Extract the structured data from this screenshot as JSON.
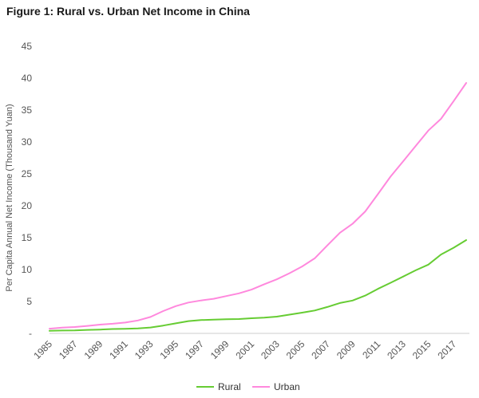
{
  "chart_data": {
    "type": "line",
    "title": "Figure 1: Rural vs. Urban Net Income in China",
    "xlabel": "",
    "ylabel": "Per Capita Annual Net Income (Thousand Yuan)",
    "x": [
      1985,
      1986,
      1987,
      1988,
      1989,
      1990,
      1991,
      1992,
      1993,
      1994,
      1995,
      1996,
      1997,
      1998,
      1999,
      2000,
      2001,
      2002,
      2003,
      2004,
      2005,
      2006,
      2007,
      2008,
      2009,
      2010,
      2011,
      2012,
      2013,
      2014,
      2015,
      2016,
      2017,
      2018
    ],
    "x_tick_labels": [
      "1985",
      "1987",
      "1989",
      "1991",
      "1993",
      "1995",
      "1997",
      "1999",
      "2001",
      "2003",
      "2005",
      "2007",
      "2009",
      "2011",
      "2013",
      "2015",
      "2017"
    ],
    "y_tick_labels": [
      "-",
      "5",
      "10",
      "15",
      "20",
      "25",
      "30",
      "35",
      "40",
      "45"
    ],
    "ylim": [
      0,
      45
    ],
    "grid": false,
    "legend_position": "bottom",
    "series": [
      {
        "name": "Rural",
        "color": "#66cc33",
        "values": [
          0.4,
          0.45,
          0.46,
          0.55,
          0.6,
          0.69,
          0.71,
          0.78,
          0.92,
          1.22,
          1.58,
          1.93,
          2.09,
          2.16,
          2.21,
          2.25,
          2.37,
          2.48,
          2.62,
          2.94,
          3.25,
          3.59,
          4.14,
          4.76,
          5.15,
          5.92,
          6.98,
          7.92,
          8.9,
          9.89,
          10.77,
          12.36,
          13.43,
          14.62
        ]
      },
      {
        "name": "Urban",
        "color": "#ff88dd",
        "values": [
          0.74,
          0.9,
          1.0,
          1.18,
          1.37,
          1.51,
          1.7,
          2.03,
          2.58,
          3.5,
          4.28,
          4.84,
          5.16,
          5.43,
          5.85,
          6.28,
          6.86,
          7.7,
          8.47,
          9.42,
          10.49,
          11.76,
          13.79,
          15.78,
          17.17,
          19.11,
          21.81,
          24.56,
          26.95,
          29.38,
          31.79,
          33.62,
          36.4,
          39.25
        ]
      }
    ]
  }
}
